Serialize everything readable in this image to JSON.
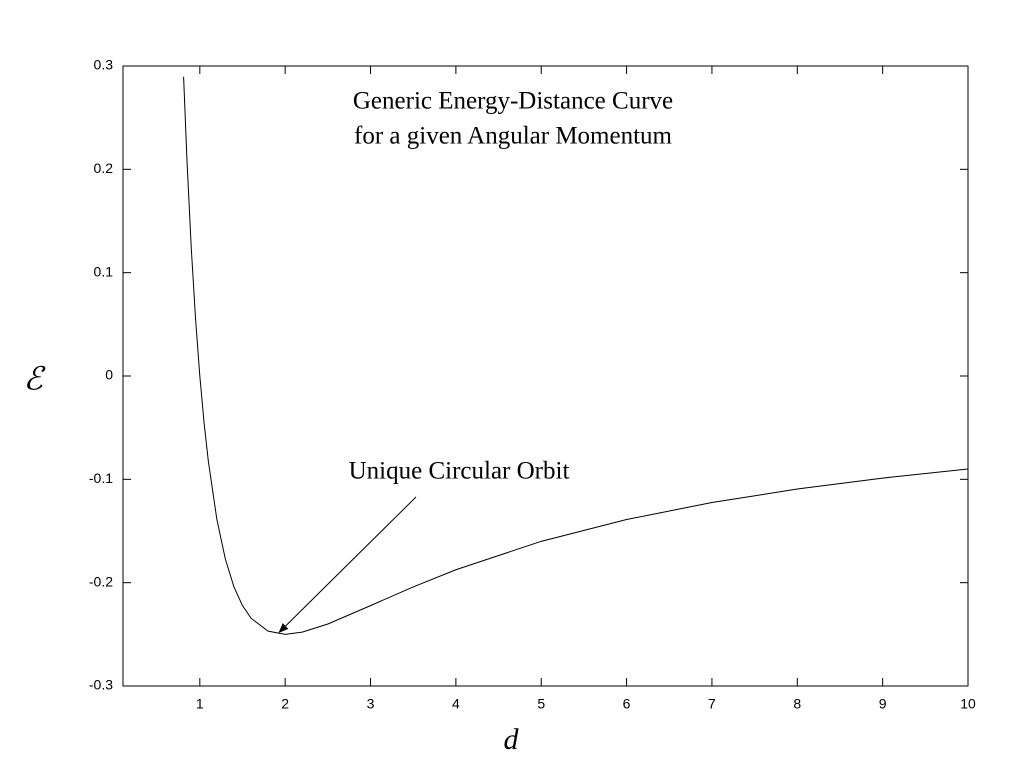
{
  "chart_data": {
    "type": "line",
    "title": "Generic Energy-Distance Curve",
    "subtitle": "for a given Angular Momentum",
    "x_label": "d",
    "y_label": "ℰ",
    "x": [
      0.81,
      0.85,
      0.9,
      0.95,
      1,
      1.05,
      1.1,
      1.2,
      1.3,
      1.4,
      1.5,
      1.6,
      1.8,
      2,
      2.2,
      2.5,
      3,
      3.5,
      4,
      5,
      6,
      7,
      8,
      9,
      10
    ],
    "series": [
      {
        "color": "#000000",
        "values": [
          0.2896,
          0.2076,
          0.1235,
          0.0554,
          0,
          -0.0454,
          -0.0826,
          -0.1389,
          -0.1775,
          -0.2041,
          -0.2222,
          -0.2344,
          -0.2469,
          -0.25,
          -0.2479,
          -0.24,
          -0.2222,
          -0.2041,
          -0.1875,
          -0.16,
          -0.1389,
          -0.1224,
          -0.1094,
          -0.0988,
          -0.09
        ]
      }
    ],
    "xlim": [
      0.1,
      10
    ],
    "ylim": [
      -0.3,
      0.3
    ],
    "xticks": [
      1,
      2,
      3,
      4,
      5,
      6,
      7,
      8,
      9,
      10
    ],
    "yticks": [
      -0.3,
      -0.2,
      -0.1,
      0,
      0.1,
      0.2,
      0.3
    ],
    "annotations": [
      {
        "text": "Unique Circular Orbit",
        "x": 2,
        "y": -0.25
      }
    ]
  }
}
